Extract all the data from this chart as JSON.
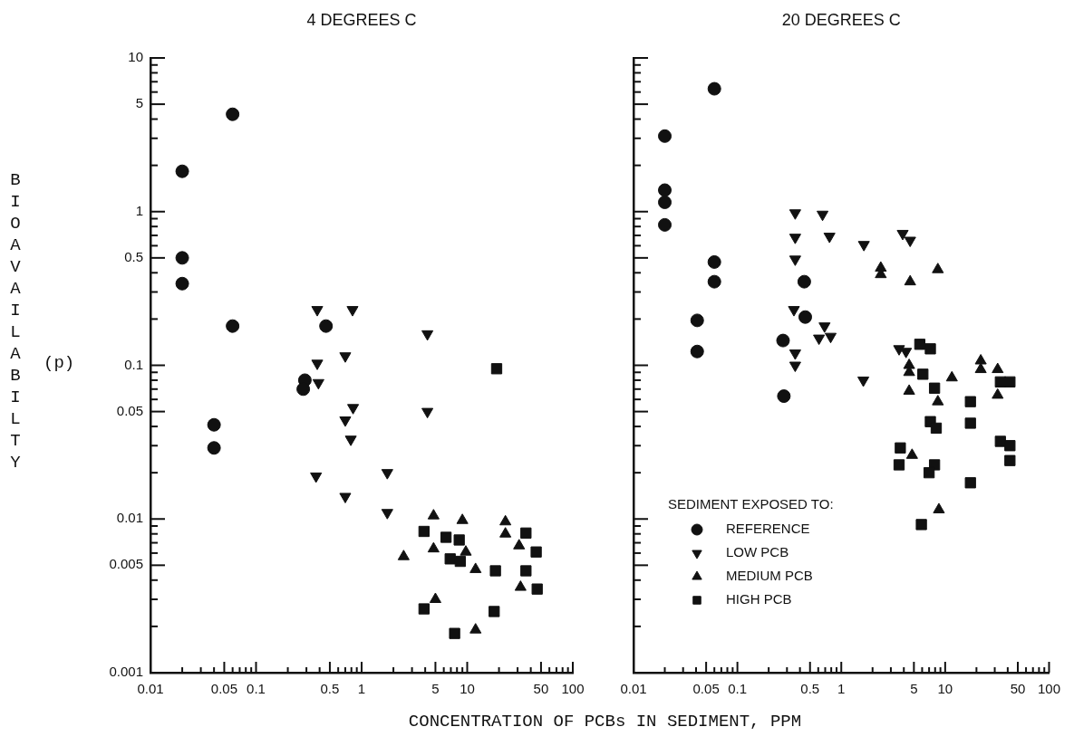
{
  "chart_data": [
    {
      "type": "scatter",
      "title": "4 DEGREES C",
      "xlabel": "CONCENTRATION OF PCBs IN SEDIMENT, PPM",
      "ylabel": "BIOAVAILABILTY (p)",
      "log": "xy",
      "xlim": [
        0.01,
        100
      ],
      "ylim": [
        0.001,
        10
      ],
      "xticks": [
        0.01,
        {
          "value": 0.02,
          "label": null
        },
        {
          "value": 0.03,
          "label": null
        },
        {
          "value": 0.04,
          "label": null
        },
        0.05,
        {
          "value": 0.06,
          "label": null
        },
        {
          "value": 0.07,
          "label": null
        },
        {
          "value": 0.08,
          "label": null
        },
        {
          "value": 0.09,
          "label": null
        },
        0.1,
        {
          "value": 0.2,
          "label": null
        },
        {
          "value": 0.3,
          "label": null
        },
        {
          "value": 0.4,
          "label": null
        },
        0.5,
        {
          "value": 0.6,
          "label": null
        },
        {
          "value": 0.7,
          "label": null
        },
        {
          "value": 0.8,
          "label": null
        },
        {
          "value": 0.9,
          "label": null
        },
        1,
        {
          "value": 2,
          "label": null
        },
        {
          "value": 3,
          "label": null
        },
        {
          "value": 4,
          "label": null
        },
        5,
        {
          "value": 6,
          "label": null
        },
        {
          "value": 7,
          "label": null
        },
        {
          "value": 8,
          "label": null
        },
        {
          "value": 9,
          "label": null
        },
        10,
        {
          "value": 20,
          "label": null
        },
        {
          "value": 30,
          "label": null
        },
        {
          "value": 40,
          "label": null
        },
        50,
        {
          "value": 60,
          "label": null
        },
        {
          "value": 70,
          "label": null
        },
        {
          "value": 80,
          "label": null
        },
        {
          "value": 90,
          "label": null
        },
        100
      ],
      "yticks": [
        0.001,
        {
          "value": 0.002,
          "label": null
        },
        {
          "value": 0.003,
          "label": null
        },
        {
          "value": 0.004,
          "label": null
        },
        0.005,
        {
          "value": 0.006,
          "label": null
        },
        {
          "value": 0.007,
          "label": null
        },
        {
          "value": 0.008,
          "label": null
        },
        {
          "value": 0.009,
          "label": null
        },
        0.01,
        {
          "value": 0.02,
          "label": null
        },
        {
          "value": 0.03,
          "label": null
        },
        {
          "value": 0.04,
          "label": null
        },
        0.05,
        {
          "value": 0.06,
          "label": null
        },
        {
          "value": 0.07,
          "label": null
        },
        {
          "value": 0.08,
          "label": null
        },
        {
          "value": 0.09,
          "label": null
        },
        0.1,
        {
          "value": 0.2,
          "label": null
        },
        {
          "value": 0.3,
          "label": null
        },
        {
          "value": 0.4,
          "label": null
        },
        0.5,
        {
          "value": 0.6,
          "label": null
        },
        {
          "value": 0.7,
          "label": null
        },
        {
          "value": 0.8,
          "label": null
        },
        {
          "value": 0.9,
          "label": null
        },
        1,
        {
          "value": 2,
          "label": null
        },
        {
          "value": 3,
          "label": null
        },
        {
          "value": 4,
          "label": null
        },
        5,
        {
          "value": 6,
          "label": null
        },
        {
          "value": 7,
          "label": null
        },
        {
          "value": 8,
          "label": null
        },
        {
          "value": 9,
          "label": null
        },
        10
      ],
      "series": [
        {
          "marker": "circle",
          "color": "#111111",
          "x": [
            0.02,
            0.06,
            0.02,
            0.02,
            0.06,
            0.46,
            0.04,
            0.04,
            0.29,
            0.28
          ],
          "values": [
            1.83,
            4.3,
            0.5,
            0.34,
            0.18,
            0.18,
            0.041,
            0.029,
            0.08,
            0.07
          ]
        },
        {
          "marker": "triangle-down",
          "color": "#111111",
          "x": [
            0.38,
            0.82,
            4.2,
            0.7,
            0.38,
            0.39,
            0.83,
            0.7,
            0.79,
            4.2,
            0.37,
            0.7,
            1.75,
            1.75
          ],
          "values": [
            0.23,
            0.23,
            0.16,
            0.115,
            0.103,
            0.077,
            0.053,
            0.044,
            0.033,
            0.05,
            0.019,
            0.014,
            0.02,
            0.011
          ]
        },
        {
          "marker": "triangle",
          "color": "#111111",
          "x": [
            4.8,
            9,
            23,
            23,
            2.5,
            4.8,
            9.7,
            12,
            31,
            32,
            5,
            12
          ],
          "values": [
            0.0105,
            0.0098,
            0.0096,
            0.008,
            0.0057,
            0.0064,
            0.0061,
            0.0047,
            0.0067,
            0.0036,
            0.003,
            0.0019
          ]
        },
        {
          "marker": "square",
          "color": "#111111",
          "x": [
            19,
            3.9,
            6.3,
            8.4,
            6.9,
            8.6,
            18.5,
            36,
            45,
            36,
            46,
            3.9,
            18,
            7.6
          ],
          "values": [
            0.095,
            0.0083,
            0.0076,
            0.0073,
            0.0055,
            0.0053,
            0.0046,
            0.0081,
            0.0061,
            0.0046,
            0.0035,
            0.0026,
            0.0025,
            0.0018
          ]
        }
      ]
    },
    {
      "type": "scatter",
      "title": "20 DEGREES C",
      "log": "xy",
      "xlim": [
        0.01,
        100
      ],
      "ylim": [
        0.001,
        10
      ],
      "tick_labels": "x",
      "legend": "bottom left",
      "legend_title": "SEDIMENT EXPOSED TO:",
      "xticks": [
        0.01,
        {
          "value": 0.02,
          "label": null
        },
        {
          "value": 0.03,
          "label": null
        },
        {
          "value": 0.04,
          "label": null
        },
        0.05,
        {
          "value": 0.06,
          "label": null
        },
        {
          "value": 0.07,
          "label": null
        },
        {
          "value": 0.08,
          "label": null
        },
        {
          "value": 0.09,
          "label": null
        },
        0.1,
        {
          "value": 0.2,
          "label": null
        },
        {
          "value": 0.3,
          "label": null
        },
        {
          "value": 0.4,
          "label": null
        },
        0.5,
        {
          "value": 0.6,
          "label": null
        },
        {
          "value": 0.7,
          "label": null
        },
        {
          "value": 0.8,
          "label": null
        },
        {
          "value": 0.9,
          "label": null
        },
        1,
        {
          "value": 2,
          "label": null
        },
        {
          "value": 3,
          "label": null
        },
        {
          "value": 4,
          "label": null
        },
        5,
        {
          "value": 6,
          "label": null
        },
        {
          "value": 7,
          "label": null
        },
        {
          "value": 8,
          "label": null
        },
        {
          "value": 9,
          "label": null
        },
        10,
        {
          "value": 20,
          "label": null
        },
        {
          "value": 30,
          "label": null
        },
        {
          "value": 40,
          "label": null
        },
        50,
        {
          "value": 60,
          "label": null
        },
        {
          "value": 70,
          "label": null
        },
        {
          "value": 80,
          "label": null
        },
        {
          "value": 90,
          "label": null
        },
        100
      ],
      "yticks": [
        0.001,
        {
          "value": 0.002,
          "label": null
        },
        {
          "value": 0.003,
          "label": null
        },
        {
          "value": 0.004,
          "label": null
        },
        0.005,
        {
          "value": 0.006,
          "label": null
        },
        {
          "value": 0.007,
          "label": null
        },
        {
          "value": 0.008,
          "label": null
        },
        {
          "value": 0.009,
          "label": null
        },
        0.01,
        {
          "value": 0.02,
          "label": null
        },
        {
          "value": 0.03,
          "label": null
        },
        {
          "value": 0.04,
          "label": null
        },
        0.05,
        {
          "value": 0.06,
          "label": null
        },
        {
          "value": 0.07,
          "label": null
        },
        {
          "value": 0.08,
          "label": null
        },
        {
          "value": 0.09,
          "label": null
        },
        0.1,
        {
          "value": 0.2,
          "label": null
        },
        {
          "value": 0.3,
          "label": null
        },
        {
          "value": 0.4,
          "label": null
        },
        0.5,
        {
          "value": 0.6,
          "label": null
        },
        {
          "value": 0.7,
          "label": null
        },
        {
          "value": 0.8,
          "label": null
        },
        {
          "value": 0.9,
          "label": null
        },
        1,
        {
          "value": 2,
          "label": null
        },
        {
          "value": 3,
          "label": null
        },
        {
          "value": 4,
          "label": null
        },
        5,
        {
          "value": 6,
          "label": null
        },
        {
          "value": 7,
          "label": null
        },
        {
          "value": 8,
          "label": null
        },
        {
          "value": 9,
          "label": null
        },
        10
      ],
      "series": [
        {
          "name": "REFERENCE",
          "marker": "circle",
          "color": "#111111",
          "x": [
            0.02,
            0.06,
            0.02,
            0.02,
            0.02,
            0.06,
            0.06,
            0.44,
            0.041,
            0.041,
            0.275,
            0.45,
            0.28
          ],
          "values": [
            3.1,
            6.3,
            1.38,
            1.15,
            0.82,
            0.47,
            0.35,
            0.35,
            0.196,
            0.123,
            0.145,
            0.206,
            0.063
          ]
        },
        {
          "name": "LOW PCB",
          "marker": "triangle-down",
          "color": "#111111",
          "x": [
            0.36,
            0.66,
            0.36,
            0.77,
            1.65,
            3.9,
            4.6,
            0.36,
            0.35,
            0.69,
            0.79,
            0.61,
            0.36,
            0.36,
            1.63,
            3.6,
            4.2
          ],
          "values": [
            0.98,
            0.96,
            0.68,
            0.69,
            0.61,
            0.72,
            0.65,
            0.49,
            0.23,
            0.18,
            0.154,
            0.15,
            0.12,
            0.1,
            0.08,
            0.128,
            0.123
          ]
        },
        {
          "name": "MEDIUM PCB",
          "marker": "triangle",
          "color": "#111111",
          "x": [
            2.4,
            2.4,
            4.6,
            8.5,
            22,
            22,
            32,
            32,
            4.5,
            4.5,
            4.5,
            11.6,
            8.5,
            4.8,
            8.7
          ],
          "values": [
            0.43,
            0.39,
            0.35,
            0.42,
            0.107,
            0.094,
            0.094,
            0.064,
            0.1,
            0.09,
            0.068,
            0.083,
            0.058,
            0.026,
            0.0115
          ]
        },
        {
          "name": "HIGH PCB",
          "marker": "square",
          "color": "#111111",
          "x": [
            5.7,
            7.2,
            6.1,
            7.9,
            17.5,
            17.5,
            7.2,
            8.2,
            34,
            42,
            42,
            42,
            34,
            3.7,
            3.6,
            7.9,
            7,
            17.5,
            5.9
          ],
          "values": [
            0.137,
            0.128,
            0.0875,
            0.071,
            0.058,
            0.042,
            0.043,
            0.039,
            0.032,
            0.03,
            0.024,
            0.078,
            0.078,
            0.029,
            0.0225,
            0.0225,
            0.02,
            0.0172,
            0.0092
          ]
        }
      ]
    }
  ]
}
